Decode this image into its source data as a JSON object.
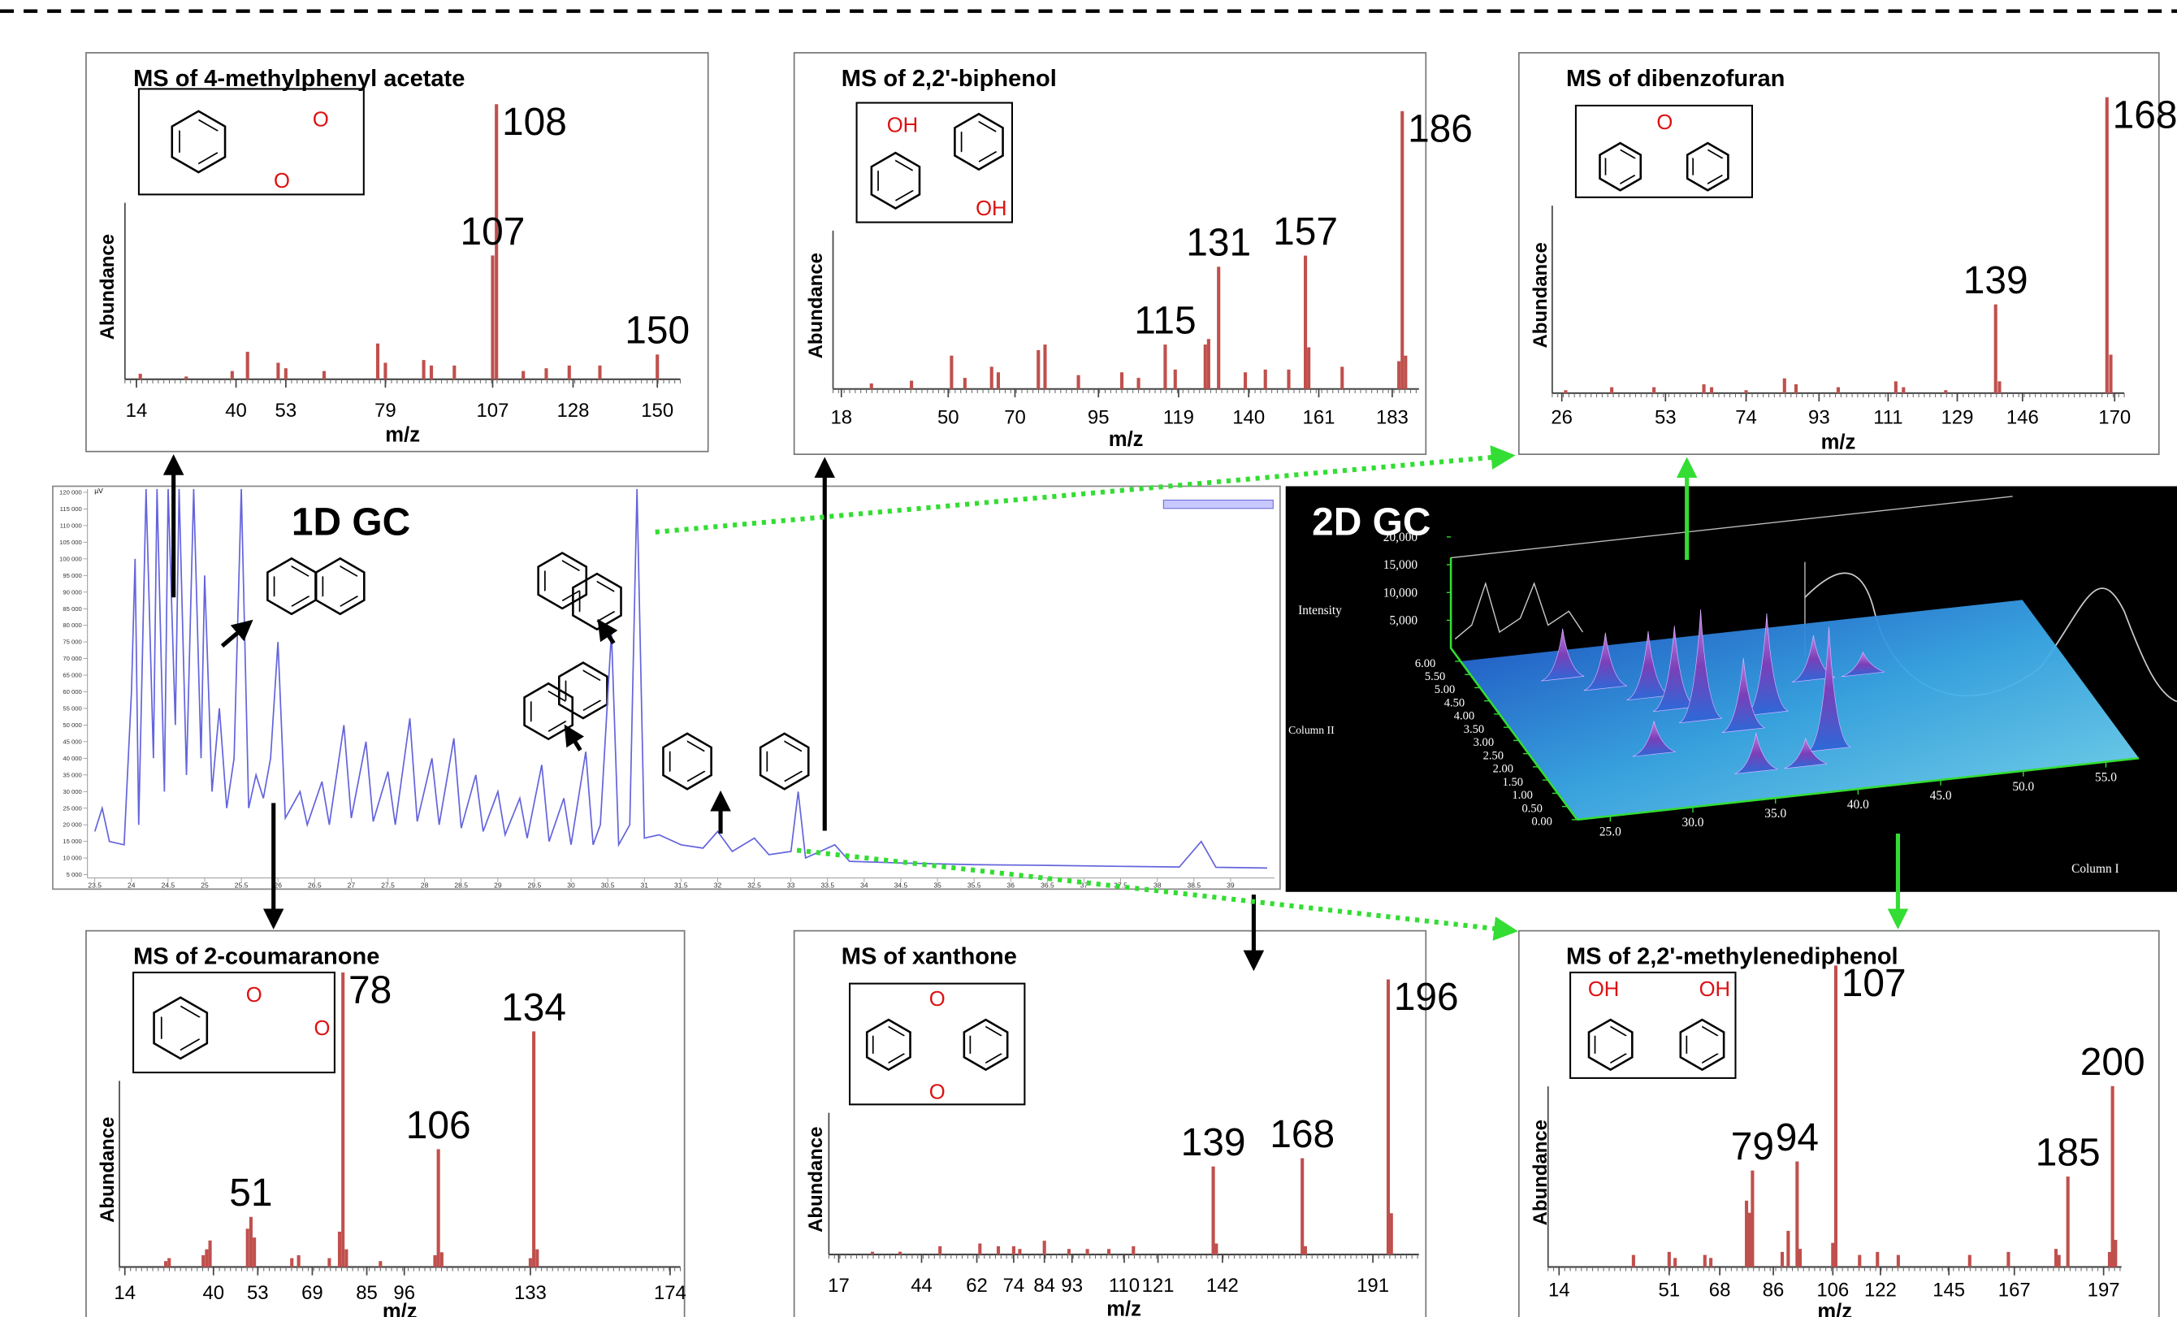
{
  "chart_data": [
    {
      "type": "spectrum",
      "title": "MS of 4-methylphenyl acetate",
      "ylabel": "Abundance",
      "xlabel": "m/z",
      "color": "#c0504d",
      "xlim": [
        11,
        156
      ],
      "ylim": [
        0,
        100
      ],
      "xticks": [
        14,
        40,
        53,
        79,
        107,
        128,
        150
      ],
      "x": [
        15,
        27,
        39,
        43,
        51,
        53,
        63,
        77,
        79,
        89,
        91,
        97,
        107,
        108,
        115,
        121,
        127,
        135,
        150
      ],
      "values": [
        2,
        1,
        3,
        10,
        6,
        4,
        3,
        13,
        6,
        7,
        5,
        5,
        45,
        100,
        3,
        4,
        5,
        5,
        9
      ],
      "peak_labels": [
        108,
        107,
        150
      ],
      "structure_labels": [
        "O",
        "O"
      ]
    },
    {
      "type": "spectrum",
      "title": "MS of 2,2'-biphenol",
      "ylabel": "Abundance",
      "xlabel": "m/z",
      "color": "#c0504d",
      "xlim": [
        15.5,
        191
      ],
      "ylim": [
        0,
        100
      ],
      "xticks": [
        18,
        50,
        70,
        95,
        119,
        140,
        161,
        183
      ],
      "x": [
        27,
        39,
        51,
        55,
        63,
        65,
        77,
        79,
        89,
        102,
        107,
        115,
        118,
        127,
        128,
        131,
        139,
        145,
        152,
        157,
        158,
        168,
        185,
        186,
        187
      ],
      "values": [
        2,
        3,
        12,
        4,
        8,
        6,
        14,
        16,
        5,
        6,
        4,
        16,
        7,
        16,
        18,
        44,
        6,
        7,
        7,
        48,
        15,
        8,
        10,
        100,
        12
      ],
      "peak_labels": [
        115,
        131,
        157,
        186
      ],
      "structure_labels": [
        "OH",
        "OH"
      ]
    },
    {
      "type": "spectrum",
      "title": "MS of dibenzofuran",
      "ylabel": "Abundance",
      "xlabel": "m/z",
      "color": "#c0504d",
      "xlim": [
        23.5,
        172.5
      ],
      "ylim": [
        0,
        100
      ],
      "xticks": [
        26,
        53,
        74,
        93,
        111,
        129,
        146,
        170
      ],
      "x": [
        27,
        39,
        50,
        63,
        65,
        74,
        84,
        87,
        98,
        113,
        115,
        126,
        139,
        140,
        168,
        169
      ],
      "values": [
        1,
        2,
        2,
        3,
        2,
        1,
        5,
        3,
        2,
        4,
        2,
        1,
        30,
        4,
        100,
        13
      ],
      "peak_labels": [
        139,
        168
      ],
      "structure_labels": [
        "O"
      ]
    },
    {
      "type": "spectrum",
      "title": "MS of 2-coumaranone",
      "ylabel": "Abundance",
      "xlabel": "m/z",
      "color": "#c0504d",
      "xlim": [
        12.4,
        177
      ],
      "ylim": [
        0,
        100
      ],
      "xticks": [
        14,
        40,
        53,
        69,
        85,
        96,
        133,
        174
      ],
      "x": [
        26,
        27,
        37,
        38,
        39,
        50,
        51,
        52,
        63,
        65,
        74,
        77,
        78,
        79,
        89,
        105,
        106,
        107,
        133,
        134,
        135
      ],
      "values": [
        2,
        3,
        4,
        6,
        9,
        13,
        17,
        10,
        3,
        4,
        3,
        12,
        100,
        6,
        2,
        4,
        40,
        5,
        3,
        80,
        6
      ],
      "peak_labels": [
        51,
        78,
        106,
        134
      ],
      "structure_labels": [
        "O",
        "O"
      ]
    },
    {
      "type": "spectrum",
      "title": "MS of xanthone",
      "ylabel": "Abundance",
      "xlabel": "m/z",
      "color": "#c0504d",
      "xlim": [
        13.8,
        206
      ],
      "ylim": [
        0,
        100
      ],
      "xticks": [
        17,
        44,
        62,
        74,
        84,
        93,
        110,
        121,
        142,
        191
      ],
      "x": [
        28,
        37,
        50,
        63,
        69,
        74,
        76,
        84,
        92,
        98,
        105,
        113,
        139,
        140,
        168,
        169,
        196,
        197
      ],
      "values": [
        1,
        1,
        3,
        4,
        3,
        3,
        2,
        5,
        2,
        2,
        2,
        3,
        32,
        4,
        35,
        3,
        100,
        15
      ],
      "peak_labels": [
        139,
        168,
        196
      ],
      "structure_labels": [
        "O",
        "O"
      ]
    },
    {
      "type": "spectrum",
      "title": "MS of 2,2'-methylenediphenol",
      "ylabel": "Abundance",
      "xlabel": "m/z",
      "color": "#c0504d",
      "xlim": [
        10.3,
        203
      ],
      "ylim": [
        0,
        100
      ],
      "xticks": [
        14,
        51,
        68,
        86,
        106,
        122,
        145,
        167,
        197
      ],
      "x": [
        39,
        51,
        53,
        63,
        65,
        77,
        78,
        79,
        89,
        91,
        94,
        95,
        106,
        107,
        115,
        121,
        128,
        152,
        165,
        181,
        182,
        185,
        199,
        200,
        201
      ],
      "values": [
        4,
        5,
        3,
        4,
        3,
        22,
        18,
        32,
        5,
        12,
        35,
        6,
        8,
        100,
        4,
        5,
        4,
        4,
        5,
        6,
        4,
        30,
        5,
        60,
        9
      ],
      "peak_labels": [
        79,
        94,
        107,
        185,
        200
      ],
      "structure_labels": [
        "OH",
        "OH"
      ]
    },
    {
      "type": "line",
      "title": "1D GC",
      "ylabel": "µV",
      "color": "#6464dc",
      "xlim": [
        23.4,
        39.6
      ],
      "ylim": [
        4000,
        121000
      ],
      "xticks": [
        23.5,
        24,
        24.5,
        25,
        25.5,
        26,
        26.5,
        27,
        27.5,
        28,
        28.5,
        29,
        29.5,
        30,
        30.5,
        31,
        31.5,
        32,
        32.5,
        33,
        33.5,
        34,
        34.5,
        35,
        35.5,
        36,
        36.5,
        37,
        37.5,
        38,
        38.5,
        39
      ],
      "yticks": [
        {
          "value": 5000,
          "label": "5 000"
        },
        {
          "value": 10000,
          "label": "10 000"
        },
        {
          "value": 15000,
          "label": "15 000"
        },
        {
          "value": 20000,
          "label": "20 000"
        },
        {
          "value": 25000,
          "label": "25 000"
        },
        {
          "value": 30000,
          "label": "30 000"
        },
        {
          "value": 35000,
          "label": "35 000"
        },
        {
          "value": 40000,
          "label": "40 000"
        },
        {
          "value": 45000,
          "label": "45 000"
        },
        {
          "value": 50000,
          "label": "50 000"
        },
        {
          "value": 55000,
          "label": "55 000"
        },
        {
          "value": 60000,
          "label": "60 000"
        },
        {
          "value": 65000,
          "label": "65 000"
        },
        {
          "value": 70000,
          "label": "70 000"
        },
        {
          "value": 75000,
          "label": "75 000"
        },
        {
          "value": 80000,
          "label": "80 000"
        },
        {
          "value": 85000,
          "label": "85 000"
        },
        {
          "value": 90000,
          "label": "90 000"
        },
        {
          "value": 95000,
          "label": "95 000"
        },
        {
          "value": 100000,
          "label": "100 000"
        },
        {
          "value": 105000,
          "label": "105 000"
        },
        {
          "value": 110000,
          "label": "110 000"
        },
        {
          "value": 115000,
          "label": "115 000"
        },
        {
          "value": 120000,
          "label": "120 000"
        }
      ],
      "x": [
        23.5,
        23.6,
        23.7,
        23.9,
        24.0,
        24.05,
        24.1,
        24.2,
        24.3,
        24.35,
        24.45,
        24.5,
        24.6,
        24.65,
        24.75,
        24.85,
        24.95,
        25.0,
        25.1,
        25.2,
        25.3,
        25.4,
        25.5,
        25.6,
        25.7,
        25.8,
        25.9,
        26.0,
        26.1,
        26.3,
        26.4,
        26.6,
        26.7,
        26.9,
        27.0,
        27.2,
        27.3,
        27.5,
        27.6,
        27.8,
        27.9,
        28.1,
        28.2,
        28.4,
        28.5,
        28.7,
        28.8,
        29.0,
        29.1,
        29.3,
        29.4,
        29.6,
        29.7,
        29.9,
        30.0,
        30.2,
        30.3,
        30.4,
        30.55,
        30.65,
        30.8,
        30.9,
        31.0,
        31.2,
        31.5,
        31.8,
        32.0,
        32.2,
        32.5,
        32.7,
        33.0,
        33.1,
        33.2,
        33.6,
        33.8,
        34.5,
        35.5,
        36.5,
        37.5,
        38.3,
        38.6,
        38.8,
        39.5
      ],
      "values": [
        18000,
        25000,
        15000,
        14000,
        60000,
        100000,
        20000,
        121000,
        40000,
        121000,
        30000,
        121000,
        50000,
        121000,
        35000,
        121000,
        40000,
        95000,
        30000,
        55000,
        25000,
        40000,
        121000,
        25000,
        35000,
        28000,
        40000,
        75000,
        22000,
        30000,
        20000,
        33000,
        20000,
        50000,
        22000,
        45000,
        21000,
        36000,
        20000,
        52000,
        21000,
        40000,
        20000,
        46000,
        19000,
        35000,
        18000,
        30000,
        17000,
        28000,
        16000,
        38000,
        15000,
        28000,
        14000,
        42000,
        14000,
        20000,
        78000,
        14000,
        20000,
        121000,
        16000,
        17000,
        14000,
        13000,
        18000,
        12000,
        16000,
        11000,
        12000,
        30000,
        10000,
        14000,
        9000,
        8500,
        8000,
        7800,
        7500,
        7300,
        15000,
        7200,
        7000
      ]
    },
    {
      "type": "surface",
      "title": "2D GC",
      "zlabel": "Intensity",
      "ylabel": "Column II",
      "xlabel": "Column I",
      "zticks": [
        {
          "value": 20000,
          "label": "20,000"
        },
        {
          "value": 15000,
          "label": "15,000"
        },
        {
          "value": 10000,
          "label": "10,000"
        },
        {
          "value": 5000,
          "label": "5,000"
        }
      ],
      "yticks": [
        {
          "value": 0,
          "label": "0.00"
        },
        {
          "value": 0.5,
          "label": "0.50"
        },
        {
          "value": 1,
          "label": "1.00"
        },
        {
          "value": 1.5,
          "label": "1.50"
        },
        {
          "value": 2,
          "label": "2.00"
        },
        {
          "value": 2.5,
          "label": "2.50"
        },
        {
          "value": 3,
          "label": "3.00"
        },
        {
          "value": 3.5,
          "label": "3.50"
        },
        {
          "value": 4,
          "label": "4.00"
        },
        {
          "value": 4.5,
          "label": "4.50"
        },
        {
          "value": 5,
          "label": "5.00"
        },
        {
          "value": 5.5,
          "label": "5.50"
        },
        {
          "value": 6,
          "label": "6.00"
        }
      ],
      "xticks": [
        {
          "value": 25,
          "label": "25.0"
        },
        {
          "value": 30,
          "label": "30.0"
        },
        {
          "value": 35,
          "label": "35.0"
        },
        {
          "value": 40,
          "label": "40.0"
        },
        {
          "value": 45,
          "label": "45.0"
        },
        {
          "value": 50,
          "label": "50.0"
        },
        {
          "value": 55,
          "label": "55.0"
        }
      ],
      "x": [
        28,
        30,
        32,
        42,
        33,
        45,
        34,
        36,
        38,
        30,
        40,
        35,
        38
      ],
      "y": [
        5,
        4.5,
        4,
        4,
        3.5,
        4,
        3,
        2.5,
        3,
        2,
        1.5,
        1,
        1
      ],
      "values": [
        9000,
        10000,
        12000,
        8000,
        15000,
        4000,
        20000,
        13000,
        18000,
        6000,
        22000,
        7000,
        5000
      ]
    }
  ]
}
